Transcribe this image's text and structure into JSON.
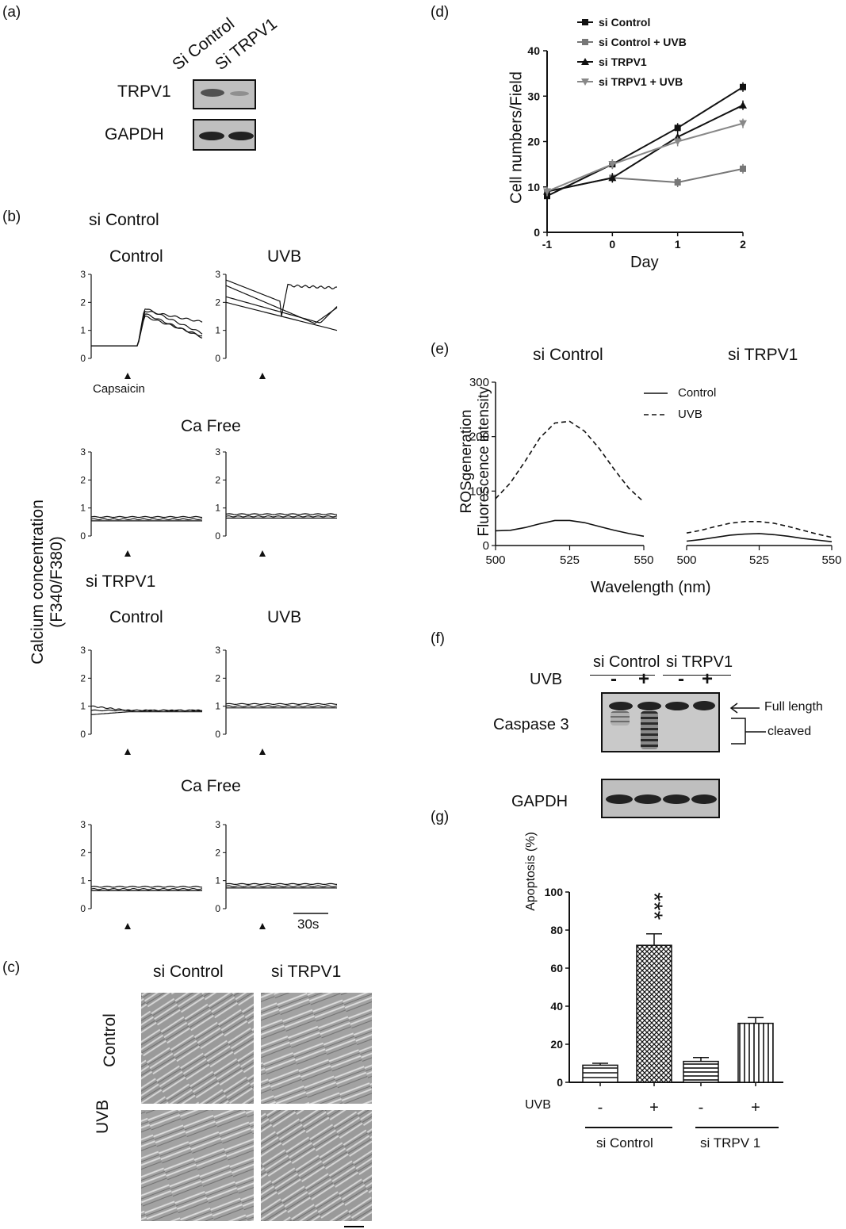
{
  "panels": {
    "a": "(a)",
    "b": "(b)",
    "c": "(c)",
    "d": "(d)",
    "e": "(e)",
    "f": "(f)",
    "g": "(g)"
  },
  "panel_a": {
    "lanes": [
      "Si Control",
      "Si TRPV1"
    ],
    "rows": [
      "TRPV1",
      "GAPDH"
    ]
  },
  "panel_b": {
    "ylabel_line1": "Calcium concentration",
    "ylabel_line2": "(F340/F380)",
    "group1": "si Control",
    "group2": "si TRPV1",
    "col_control": "Control",
    "col_uvb": "UVB",
    "ca_free": "Ca Free",
    "capsaicin": "Capsaicin",
    "scale": "30s",
    "yticks": [
      "0",
      "1",
      "2",
      "3"
    ]
  },
  "panel_c": {
    "cols": [
      "si Control",
      "si TRPV1"
    ],
    "rows": [
      "Control",
      "UVB"
    ]
  },
  "chart_data": [
    {
      "type": "line",
      "panel": "d",
      "xlabel": "Day",
      "ylabel": "Cell numbers/Field",
      "x": [
        -1,
        0,
        1,
        2
      ],
      "xticks": [
        "-1",
        "0",
        "1",
        "2"
      ],
      "yticks": [
        "0",
        "10",
        "20",
        "30",
        "40"
      ],
      "ylim": [
        0,
        40
      ],
      "series": [
        {
          "name": "si Control",
          "values": [
            8,
            15,
            23,
            32
          ],
          "color": "#111111",
          "marker": "square"
        },
        {
          "name": "si Control + UVB",
          "values": [
            9,
            12,
            11,
            14
          ],
          "color": "#777777",
          "marker": "square"
        },
        {
          "name": "si TRPV1",
          "values": [
            9,
            12,
            21,
            28
          ],
          "color": "#111111",
          "marker": "triangle"
        },
        {
          "name": "si TRPV1 + UVB",
          "values": [
            9,
            15,
            20,
            24
          ],
          "color": "#888888",
          "marker": "triangle-down"
        }
      ]
    },
    {
      "type": "line",
      "panel": "e",
      "ylabel_line1": "ROSgeneration",
      "ylabel_line2": "Fluorescence intensity",
      "xlabel": "Wavelength (nm)",
      "titles": [
        "si Control",
        "si TRPV1"
      ],
      "xticks": [
        "500",
        "525",
        "550"
      ],
      "yticks": [
        "0",
        "100",
        "200",
        "300"
      ],
      "ylim": [
        0,
        300
      ],
      "legend": [
        "Control",
        "UVB"
      ],
      "x": [
        500,
        505,
        510,
        515,
        520,
        525,
        530,
        535,
        540,
        545,
        550
      ],
      "si_control": {
        "control": [
          27,
          28,
          33,
          40,
          46,
          46,
          42,
          35,
          28,
          22,
          17
        ],
        "uvb": [
          86,
          115,
          155,
          198,
          225,
          228,
          210,
          178,
          140,
          105,
          80
        ]
      },
      "si_trpv1": {
        "control": [
          8,
          11,
          15,
          19,
          21,
          22,
          20,
          17,
          13,
          10,
          7
        ],
        "uvb": [
          23,
          28,
          35,
          41,
          44,
          44,
          41,
          35,
          28,
          21,
          15
        ]
      }
    },
    {
      "type": "bar",
      "panel": "g",
      "ylabel": "Apoptosis (%)",
      "categories": [
        "-",
        "+",
        "-",
        "+"
      ],
      "values": [
        9,
        72,
        11,
        31
      ],
      "errors": [
        1,
        6,
        2,
        3
      ],
      "ylim": [
        0,
        100
      ],
      "yticks": [
        "0",
        "20",
        "40",
        "60",
        "80",
        "100"
      ],
      "significance": "***",
      "uvb_label": "UVB",
      "groups": [
        "si Control",
        "si TRPV 1"
      ]
    }
  ],
  "panel_f": {
    "groups": [
      "si Control",
      "si TRPV1"
    ],
    "uvb_label": "UVB",
    "signs": [
      "-",
      "+",
      "-",
      "+"
    ],
    "rows": [
      "Caspase 3",
      "GAPDH"
    ],
    "annot_full": "Full length",
    "annot_cleaved": "cleaved"
  }
}
